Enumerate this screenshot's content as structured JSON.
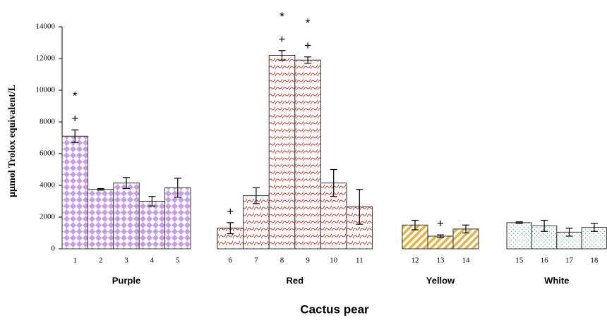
{
  "chart_data": {
    "type": "bar",
    "y_label": "µµmol Trolox equivalent/L",
    "x_label": "Cactus pear",
    "ylim": [
      0,
      14000
    ],
    "yticks": [
      0,
      2000,
      4000,
      6000,
      8000,
      10000,
      12000,
      14000
    ],
    "groups": [
      {
        "name": "Purple",
        "color": "#c79ee6",
        "pattern": "diamond",
        "categories": [
          "1",
          "2",
          "3",
          "4",
          "5"
        ],
        "values": [
          7100,
          3750,
          4150,
          3000,
          3850
        ],
        "errors": [
          400,
          50,
          350,
          300,
          600
        ],
        "annotations": [
          [
            "+",
            "*"
          ],
          [],
          [],
          [],
          []
        ]
      },
      {
        "name": "Red",
        "color": "#c0392b",
        "pattern": "wave",
        "categories": [
          "6",
          "7",
          "8",
          "9",
          "10",
          "11"
        ],
        "values": [
          1300,
          3350,
          12200,
          11900,
          4150,
          2650
        ],
        "errors": [
          350,
          500,
          300,
          200,
          850,
          1100
        ],
        "annotations": [
          [
            "+"
          ],
          [],
          [
            "+",
            "*"
          ],
          [
            "+",
            "*"
          ],
          [],
          []
        ]
      },
      {
        "name": "Yellow",
        "color": "#e3b445",
        "pattern": "stripe",
        "categories": [
          "12",
          "13",
          "14"
        ],
        "values": [
          1500,
          800,
          1250
        ],
        "errors": [
          300,
          80,
          250
        ],
        "annotations": [
          [],
          [
            "+"
          ],
          []
        ]
      },
      {
        "name": "White",
        "color": "#5fa6a0",
        "pattern": "dots",
        "categories": [
          "15",
          "16",
          "17",
          "18"
        ],
        "values": [
          1650,
          1450,
          1050,
          1350
        ],
        "errors": [
          50,
          350,
          250,
          250
        ],
        "annotations": [
          [],
          [],
          [],
          []
        ]
      }
    ]
  }
}
